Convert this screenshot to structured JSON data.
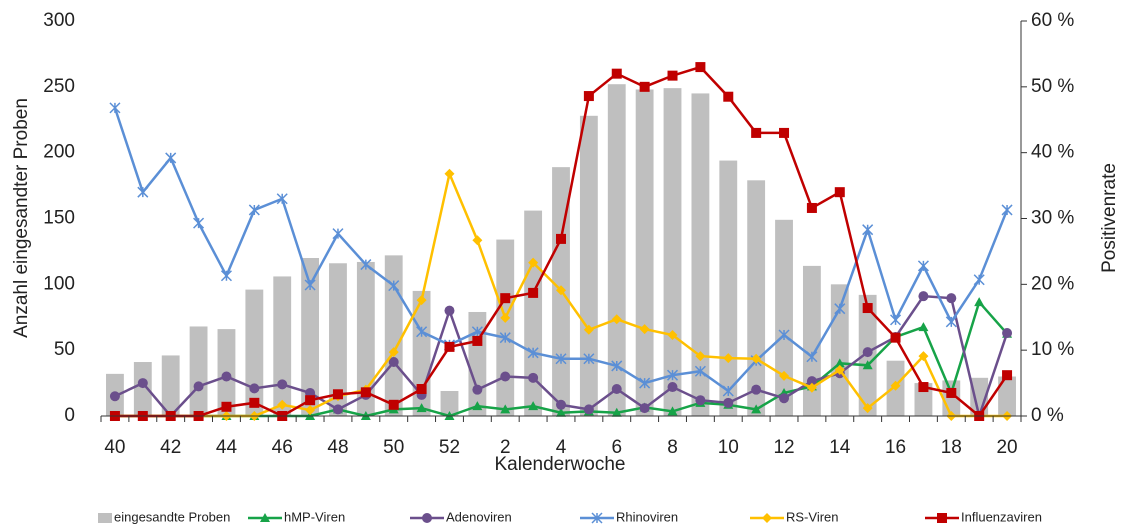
{
  "chart_data": {
    "type": "combo",
    "categories": [
      "40",
      null,
      "42",
      null,
      "44",
      null,
      "46",
      null,
      "48",
      null,
      "50",
      null,
      "52",
      null,
      "2",
      null,
      "4",
      null,
      "6",
      null,
      "8",
      null,
      "10",
      null,
      "12",
      null,
      "14",
      null,
      "16",
      null,
      "18",
      null,
      "20"
    ],
    "x_label": "Kalenderwoche",
    "y_label": "Anzahl eingesandter Proben",
    "y2_label": "Positivenrate",
    "ylim": [
      0,
      300
    ],
    "yticks": [
      0,
      50,
      100,
      150,
      200,
      250,
      300
    ],
    "y2lim": [
      0,
      60
    ],
    "y2ticks": [
      {
        "value": 0,
        "label": "0 %"
      },
      {
        "value": 10,
        "label": "10 %"
      },
      {
        "value": 20,
        "label": "20 %"
      },
      {
        "value": 30,
        "label": "30 %"
      },
      {
        "value": 40,
        "label": "40 %"
      },
      {
        "value": 50,
        "label": "50 %"
      },
      {
        "value": 60,
        "label": "60 %"
      }
    ],
    "series": [
      {
        "name": "eingesandte Proben",
        "type": "bar",
        "color": "#bfbfbf",
        "axis": "y",
        "values": [
          32,
          41,
          46,
          68,
          66,
          96,
          106,
          120,
          116,
          117,
          122,
          95,
          19,
          79,
          134,
          156,
          189,
          228,
          252,
          248,
          249,
          245,
          194,
          179,
          149,
          114,
          100,
          92,
          42,
          25,
          27,
          29,
          30
        ]
      },
      {
        "name": "hMP-Viren",
        "type": "line",
        "marker": "triangle",
        "color": "#17a348",
        "axis": "y2",
        "values": [
          0,
          0,
          0,
          0,
          0,
          0,
          0,
          0,
          1,
          0,
          1,
          1.2,
          0,
          1.5,
          1,
          1.5,
          0.5,
          0.7,
          0.5,
          1.3,
          0.7,
          2,
          1.7,
          1,
          3.5,
          4.5,
          8,
          7.7,
          12,
          13.5,
          3.5,
          17.3,
          12.5
        ]
      },
      {
        "name": "Adenoviren",
        "type": "line",
        "marker": "circle",
        "color": "#6b4f8c",
        "axis": "y2",
        "values": [
          3,
          5,
          0,
          4.5,
          6,
          4.2,
          4.8,
          3.5,
          1,
          3.2,
          8.2,
          3.2,
          16,
          4,
          6,
          5.8,
          1.7,
          1,
          4.1,
          1.2,
          4.4,
          2.4,
          2,
          4,
          2.7,
          5.3,
          6.5,
          9.7,
          12,
          18.2,
          17.9,
          0,
          12.6
        ]
      },
      {
        "name": "Rhinoviren",
        "type": "line",
        "marker": "star",
        "color": "#5b8fd6",
        "axis": "y2",
        "values": [
          46.8,
          34,
          39.2,
          29.3,
          21.3,
          31.3,
          33,
          19.9,
          27.7,
          23,
          19.8,
          12.8,
          10.8,
          12.8,
          11.9,
          9.6,
          8.7,
          8.7,
          7.6,
          5,
          6.2,
          6.8,
          3.8,
          8.4,
          12.3,
          9,
          16.3,
          28.3,
          14.6,
          22.8,
          14.3,
          20.7,
          31.3
        ]
      },
      {
        "name": "RS-Viren",
        "type": "line",
        "marker": "diamond",
        "color": "#ffc000",
        "axis": "y2",
        "values": [
          0,
          0,
          0,
          0,
          0,
          0,
          1.7,
          0.9,
          3,
          4,
          9.7,
          17.6,
          36.8,
          26.7,
          14.9,
          23.3,
          19.1,
          13.1,
          14.7,
          13.2,
          12.3,
          9.1,
          8.8,
          8.7,
          6.1,
          4.3,
          7,
          1.2,
          4.6,
          9.1,
          0,
          0,
          0
        ]
      },
      {
        "name": "Influenzaviren",
        "type": "line",
        "marker": "square",
        "color": "#c00000",
        "axis": "y2",
        "values": [
          0,
          0,
          0,
          0,
          1.4,
          2,
          0,
          2.4,
          3.3,
          3.6,
          1.7,
          4.1,
          10.5,
          11.4,
          17.9,
          18.7,
          26.9,
          48.6,
          52,
          50,
          51.7,
          53,
          48.5,
          43,
          43,
          31.6,
          34,
          16.4,
          11.9,
          4.4,
          3.5,
          0,
          6.2
        ]
      }
    ]
  }
}
